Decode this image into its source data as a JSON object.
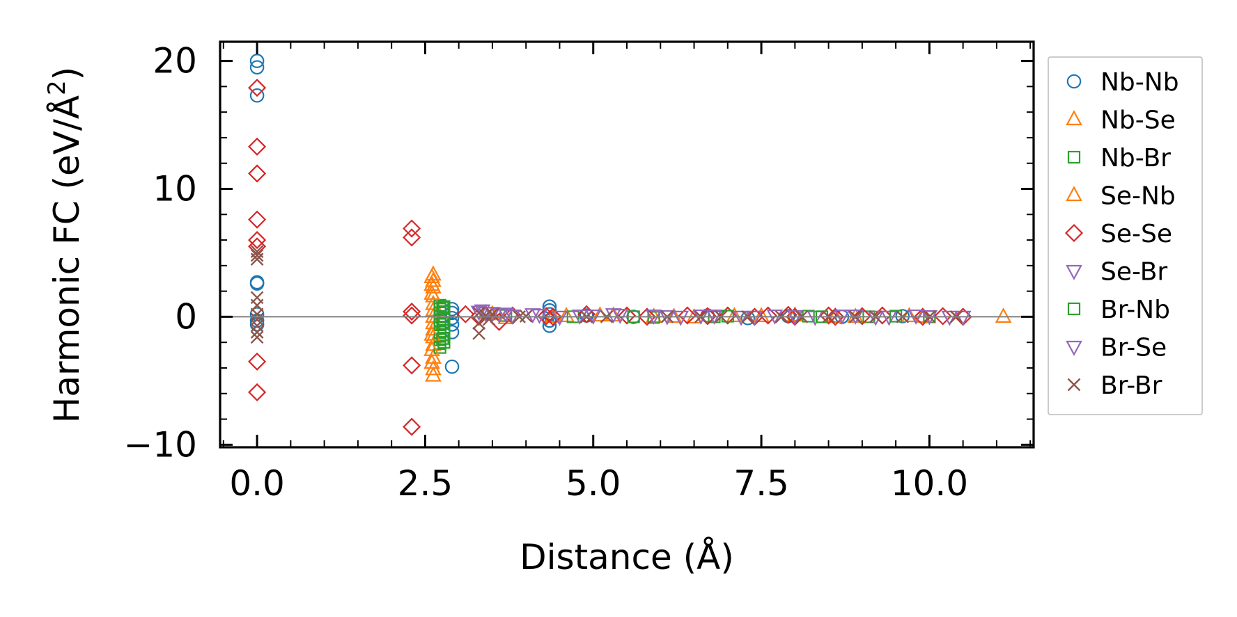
{
  "chart_data": {
    "type": "scatter",
    "title": "",
    "xlabel": "Distance (Å)",
    "ylabel_main": "Harmonic FC (eV/Å",
    "ylabel_sup": "2",
    "ylabel_end": ")",
    "xlim": [
      -0.55,
      11.55
    ],
    "ylim": [
      -10.2,
      21.5
    ],
    "xticks": [
      0,
      2.5,
      5,
      7.5,
      10
    ],
    "xtick_labels": [
      "0.0",
      "2.5",
      "5.0",
      "7.5",
      "10.0"
    ],
    "yticks": [
      -10,
      0,
      10,
      20
    ],
    "ytick_labels": [
      "−10",
      "0",
      "10",
      "20"
    ],
    "x_minor_step": 0.5,
    "y_minor_step": 2,
    "zero_line": true,
    "grid": false,
    "legend_position": "outside-right",
    "series": [
      {
        "name": "Nb-Nb",
        "marker": "circle",
        "color": "#1f77b4",
        "points": [
          [
            0,
            20.0
          ],
          [
            0,
            19.5
          ],
          [
            0,
            17.3
          ],
          [
            0,
            2.7
          ],
          [
            0,
            2.6
          ],
          [
            0,
            0.2
          ],
          [
            0,
            -0.3
          ],
          [
            0,
            -0.6
          ],
          [
            2.9,
            0.6
          ],
          [
            2.9,
            0.3
          ],
          [
            2.9,
            -0.1
          ],
          [
            2.9,
            -0.6
          ],
          [
            2.9,
            -1.2
          ],
          [
            2.9,
            -3.9
          ],
          [
            4.35,
            0.8
          ],
          [
            4.35,
            0.5
          ],
          [
            4.35,
            0.2
          ],
          [
            4.35,
            -0.3
          ],
          [
            4.35,
            -0.7
          ],
          [
            4.9,
            0.1
          ],
          [
            5.6,
            0.0
          ],
          [
            6.7,
            0.1
          ],
          [
            7.3,
            -0.1
          ],
          [
            7.9,
            0.05
          ],
          [
            8.7,
            0.0
          ],
          [
            9.6,
            0.05
          ]
        ]
      },
      {
        "name": "Nb-Se",
        "marker": "triangle-up",
        "color": "#ff7f0e",
        "points": [
          [
            2.62,
            3.3
          ],
          [
            2.62,
            2.8
          ],
          [
            2.62,
            2.3
          ],
          [
            2.62,
            1.6
          ],
          [
            2.62,
            1.0
          ],
          [
            2.62,
            0.5
          ],
          [
            2.62,
            0.0
          ],
          [
            2.62,
            -0.5
          ],
          [
            2.62,
            -1.0
          ],
          [
            2.62,
            -1.6
          ],
          [
            2.62,
            -2.2
          ],
          [
            2.62,
            -3.2
          ],
          [
            2.62,
            -4.1
          ],
          [
            2.62,
            -4.6
          ],
          [
            3.4,
            0.3
          ],
          [
            3.7,
            -0.1
          ],
          [
            4.6,
            0.05
          ],
          [
            5.1,
            0.1
          ],
          [
            5.9,
            0.0
          ],
          [
            6.5,
            -0.05
          ],
          [
            7.1,
            0.05
          ],
          [
            8.0,
            0.1
          ],
          [
            8.9,
            0.0
          ],
          [
            9.7,
            0.05
          ],
          [
            11.1,
            0.0
          ]
        ]
      },
      {
        "name": "Nb-Br",
        "marker": "square",
        "color": "#2ca02c",
        "points": [
          [
            2.72,
            0.9
          ],
          [
            2.72,
            0.6
          ],
          [
            2.72,
            0.3
          ],
          [
            2.72,
            0.0
          ],
          [
            2.72,
            -0.3
          ],
          [
            2.72,
            -0.6
          ],
          [
            2.72,
            -0.9
          ],
          [
            2.72,
            -1.2
          ],
          [
            2.72,
            -1.5
          ],
          [
            2.72,
            -1.8
          ],
          [
            2.72,
            -2.1
          ],
          [
            2.72,
            -2.4
          ],
          [
            2.78,
            0.8
          ],
          [
            2.78,
            0.4
          ],
          [
            2.78,
            -0.2
          ],
          [
            2.78,
            -0.8
          ],
          [
            2.78,
            -1.4
          ],
          [
            2.78,
            -2.0
          ],
          [
            3.7,
            0.1
          ],
          [
            4.7,
            0.0
          ],
          [
            5.9,
            -0.05
          ],
          [
            6.8,
            0.0
          ],
          [
            8.2,
            0.05
          ],
          [
            9.1,
            0.0
          ],
          [
            10.0,
            0.0
          ]
        ]
      },
      {
        "name": "Se-Nb",
        "marker": "triangle-up",
        "color": "#ff7f0e",
        "points": [
          [
            2.6,
            3.1
          ],
          [
            2.6,
            2.5
          ],
          [
            2.6,
            1.8
          ],
          [
            2.6,
            -1.4
          ],
          [
            2.6,
            -2.6
          ],
          [
            2.6,
            -3.6
          ],
          [
            3.5,
            0.2
          ],
          [
            4.4,
            0.0
          ],
          [
            5.3,
            0.1
          ],
          [
            6.2,
            0.0
          ],
          [
            7.5,
            0.05
          ],
          [
            8.6,
            0.0
          ],
          [
            9.9,
            0.0
          ]
        ]
      },
      {
        "name": "Se-Se",
        "marker": "diamond",
        "color": "#d62728",
        "points": [
          [
            0,
            17.9
          ],
          [
            0,
            13.3
          ],
          [
            0,
            11.2
          ],
          [
            0,
            7.6
          ],
          [
            0,
            6.0
          ],
          [
            0,
            5.5
          ],
          [
            0,
            -3.5
          ],
          [
            0,
            -5.9
          ],
          [
            2.3,
            6.9
          ],
          [
            2.3,
            6.2
          ],
          [
            2.3,
            0.4
          ],
          [
            2.3,
            0.1
          ],
          [
            2.3,
            -3.8
          ],
          [
            2.3,
            -8.6
          ],
          [
            3.1,
            0.2
          ],
          [
            3.3,
            0.0
          ],
          [
            3.6,
            -0.4
          ],
          [
            3.8,
            0.1
          ],
          [
            4.3,
            0.05
          ],
          [
            4.4,
            0.0
          ],
          [
            4.9,
            0.2
          ],
          [
            5.5,
            0.1
          ],
          [
            5.8,
            0.0
          ],
          [
            6.4,
            0.1
          ],
          [
            6.7,
            0.05
          ],
          [
            7.0,
            0.1
          ],
          [
            7.4,
            0.0
          ],
          [
            7.6,
            0.1
          ],
          [
            7.9,
            0.15
          ],
          [
            8.0,
            0.0
          ],
          [
            8.5,
            0.1
          ],
          [
            8.6,
            0.0
          ],
          [
            9.0,
            0.05
          ],
          [
            9.3,
            0.1
          ],
          [
            9.9,
            0.0
          ],
          [
            10.2,
            0.05
          ],
          [
            10.5,
            0.0
          ]
        ]
      },
      {
        "name": "Se-Br",
        "marker": "triangle-down",
        "color": "#9467bd",
        "points": [
          [
            3.3,
            0.4
          ],
          [
            3.4,
            0.3
          ],
          [
            3.6,
            0.2
          ],
          [
            3.8,
            0.1
          ],
          [
            4.1,
            0.2
          ],
          [
            4.5,
            0.0
          ],
          [
            5.0,
            0.1
          ],
          [
            5.3,
            0.2
          ],
          [
            5.9,
            0.1
          ],
          [
            6.3,
            0.0
          ],
          [
            6.8,
            0.1
          ],
          [
            7.2,
            0.0
          ],
          [
            7.7,
            0.1
          ],
          [
            8.3,
            0.0
          ],
          [
            8.9,
            0.1
          ],
          [
            9.4,
            0.0
          ],
          [
            9.8,
            0.1
          ],
          [
            10.3,
            0.0
          ]
        ]
      },
      {
        "name": "Br-Nb",
        "marker": "square",
        "color": "#2ca02c",
        "points": [
          [
            2.76,
            0.7
          ],
          [
            2.76,
            -0.5
          ],
          [
            2.76,
            -1.7
          ],
          [
            5.6,
            0.0
          ],
          [
            7.0,
            0.05
          ],
          [
            8.4,
            0.0
          ],
          [
            9.5,
            0.05
          ]
        ]
      },
      {
        "name": "Br-Se",
        "marker": "triangle-down",
        "color": "#9467bd",
        "points": [
          [
            3.35,
            0.5
          ],
          [
            3.5,
            0.3
          ],
          [
            3.7,
            0.25
          ],
          [
            4.2,
            0.15
          ],
          [
            4.8,
            0.1
          ],
          [
            5.4,
            0.15
          ],
          [
            6.1,
            0.05
          ],
          [
            6.6,
            0.1
          ],
          [
            7.4,
            0.0
          ],
          [
            8.0,
            0.05
          ],
          [
            8.7,
            0.1
          ],
          [
            9.2,
            0.0
          ],
          [
            10.0,
            0.05
          ],
          [
            10.5,
            0.0
          ]
        ]
      },
      {
        "name": "Br-Br",
        "marker": "x",
        "color": "#8c564b",
        "points": [
          [
            0,
            5.1
          ],
          [
            0,
            4.8
          ],
          [
            0,
            4.5
          ],
          [
            0,
            1.5
          ],
          [
            0,
            0.9
          ],
          [
            0,
            0.2
          ],
          [
            0,
            -0.2
          ],
          [
            0,
            -0.7
          ],
          [
            0,
            -1.2
          ],
          [
            0,
            -1.6
          ],
          [
            3.3,
            0.3
          ],
          [
            3.3,
            -0.5
          ],
          [
            3.3,
            -1.3
          ],
          [
            3.4,
            0.1
          ],
          [
            3.45,
            -0.2
          ],
          [
            3.5,
            0.2
          ],
          [
            3.9,
            0.0
          ],
          [
            4.0,
            0.05
          ],
          [
            4.9,
            0.0
          ],
          [
            5.2,
            0.0
          ],
          [
            6.1,
            0.0
          ],
          [
            6.6,
            0.0
          ],
          [
            6.9,
            0.0
          ],
          [
            7.3,
            0.0
          ],
          [
            7.8,
            0.0
          ],
          [
            8.1,
            0.0
          ],
          [
            8.5,
            0.0
          ],
          [
            8.9,
            0.0
          ],
          [
            9.2,
            0.0
          ],
          [
            9.6,
            0.0
          ],
          [
            10.0,
            0.0
          ],
          [
            10.4,
            0.0
          ]
        ]
      }
    ]
  }
}
